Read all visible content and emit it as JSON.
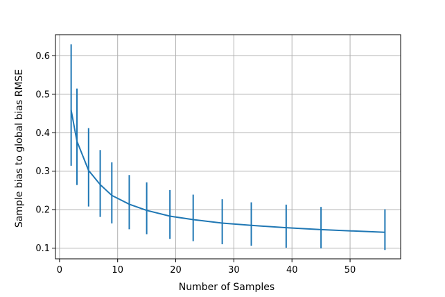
{
  "chart_data": {
    "type": "line",
    "xlabel": "Number of Samples",
    "ylabel": "Sample bias to global bias RMSE",
    "xlim": [
      -0.7,
      58.7
    ],
    "ylim": [
      0.072,
      0.655
    ],
    "x_ticks": [
      0,
      10,
      20,
      30,
      40,
      50
    ],
    "y_ticks": [
      0.1,
      0.2,
      0.3,
      0.4,
      0.5,
      0.6
    ],
    "x_tick_labels": [
      "0",
      "10",
      "20",
      "30",
      "40",
      "50"
    ],
    "y_tick_labels": [
      "0.1",
      "0.2",
      "0.3",
      "0.4",
      "0.5",
      "0.6"
    ],
    "grid": true,
    "color": "#1f77b4",
    "series": [
      {
        "x": [
          2,
          3,
          5,
          7,
          9,
          12,
          15,
          19,
          23,
          28,
          33,
          39,
          45,
          56
        ],
        "y": [
          0.459,
          0.378,
          0.302,
          0.265,
          0.237,
          0.214,
          0.198,
          0.183,
          0.174,
          0.165,
          0.159,
          0.153,
          0.148,
          0.141
        ],
        "yerr_low": [
          0.314,
          0.264,
          0.208,
          0.181,
          0.164,
          0.149,
          0.136,
          0.124,
          0.118,
          0.11,
          0.106,
          0.101,
          0.099,
          0.095
        ],
        "yerr_high": [
          0.63,
          0.515,
          0.412,
          0.355,
          0.323,
          0.29,
          0.271,
          0.251,
          0.239,
          0.227,
          0.219,
          0.213,
          0.207,
          0.201
        ]
      }
    ]
  }
}
